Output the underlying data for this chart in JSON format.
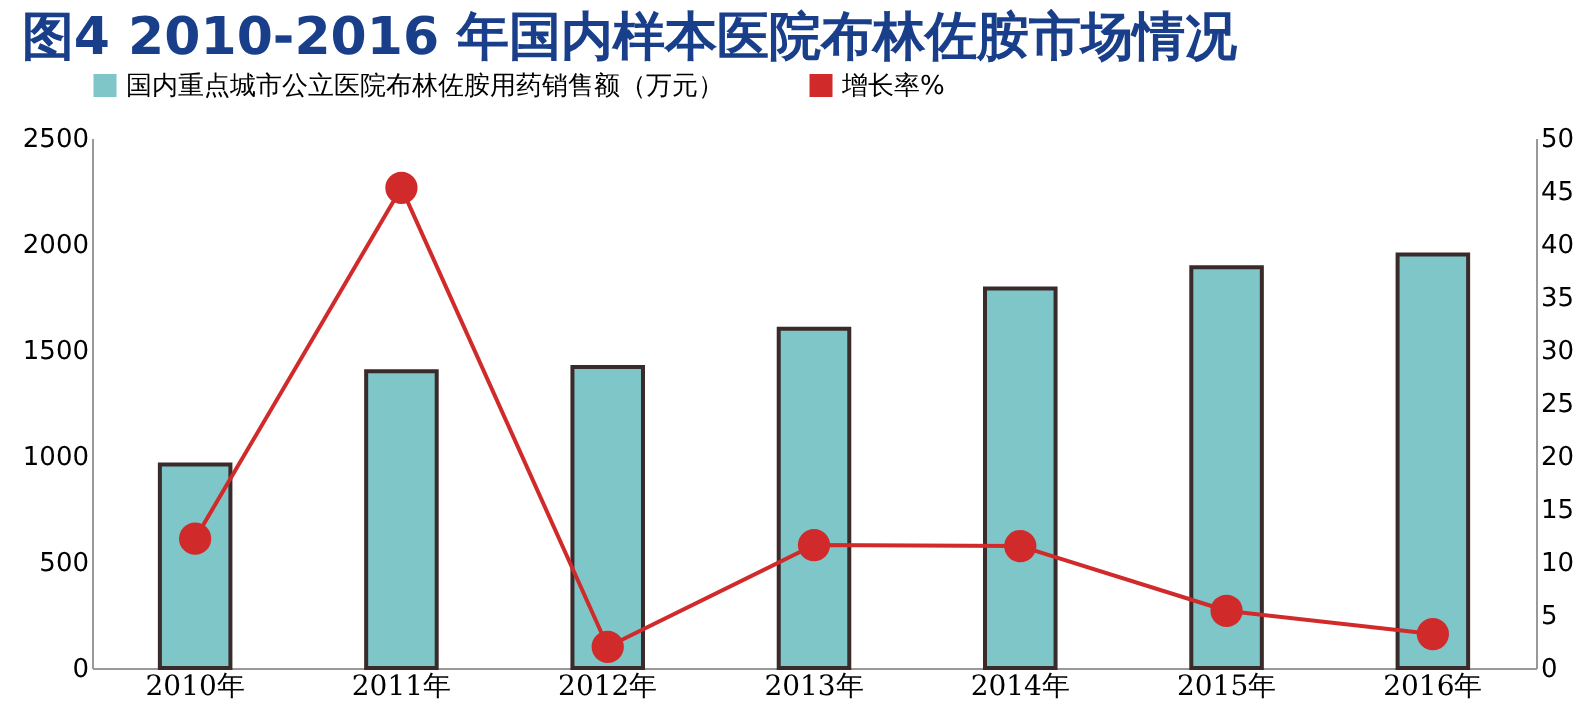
{
  "chart_data": {
    "type": "bar",
    "title": "图4 2010-2016 年国内样本医院布林佐胺市场情况",
    "categories": [
      "2010年",
      "2011年",
      "2012年",
      "2013年",
      "2014年",
      "2015年",
      "2016年"
    ],
    "series": [
      {
        "name": "国内重点城市公立医院布林佐胺用药销售额（万元）",
        "color": "#7fc6c9",
        "values": [
          960,
          1400,
          1420,
          1600,
          1790,
          1890,
          1950
        ]
      },
      {
        "name": "增长率%",
        "type": "line",
        "axis": "y2",
        "color": "#d02a2a",
        "values": [
          12.2,
          45.3,
          2.0,
          11.6,
          11.5,
          5.4,
          3.2
        ]
      }
    ],
    "ylim": [
      0,
      2500
    ],
    "yticks": [
      0,
      500,
      1000,
      1500,
      2000,
      2500
    ],
    "y2lim": [
      0,
      50
    ],
    "y2ticks": [
      0,
      5,
      10,
      15,
      20,
      25,
      30,
      35,
      40,
      45,
      50
    ],
    "marker": "circle",
    "legend": "top",
    "grid": false
  }
}
